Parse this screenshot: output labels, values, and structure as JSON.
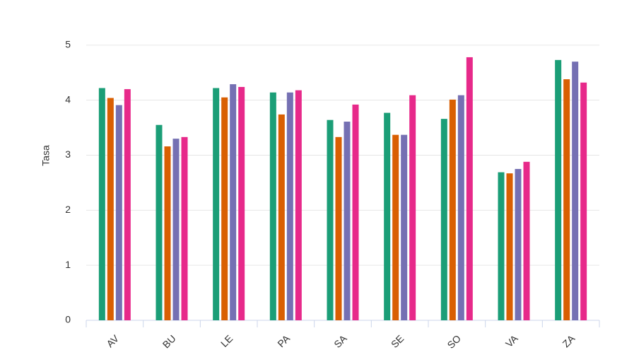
{
  "chart_data": {
    "type": "bar",
    "y_label": "Tasa",
    "categories": [
      "AV",
      "BU",
      "LE",
      "PA",
      "SA",
      "SE",
      "SO",
      "VA",
      "ZA"
    ],
    "series": [
      {
        "color": "#1b9e77",
        "values": [
          4.22,
          3.55,
          4.22,
          4.14,
          3.64,
          3.77,
          3.66,
          2.69,
          4.73
        ]
      },
      {
        "color": "#d95f02",
        "values": [
          4.04,
          3.16,
          4.05,
          3.74,
          3.33,
          3.37,
          4.01,
          2.67,
          4.38
        ]
      },
      {
        "color": "#7570b3",
        "values": [
          3.91,
          3.3,
          4.29,
          4.14,
          3.61,
          3.37,
          4.09,
          2.75,
          4.7
        ]
      },
      {
        "color": "#e7298a",
        "values": [
          4.2,
          3.33,
          4.24,
          4.18,
          3.92,
          4.09,
          4.78,
          2.88,
          4.32
        ]
      }
    ],
    "ylim": [
      0,
      5.82
    ],
    "yticks": [
      0,
      1,
      2,
      3,
      4,
      5
    ],
    "grid": true
  }
}
